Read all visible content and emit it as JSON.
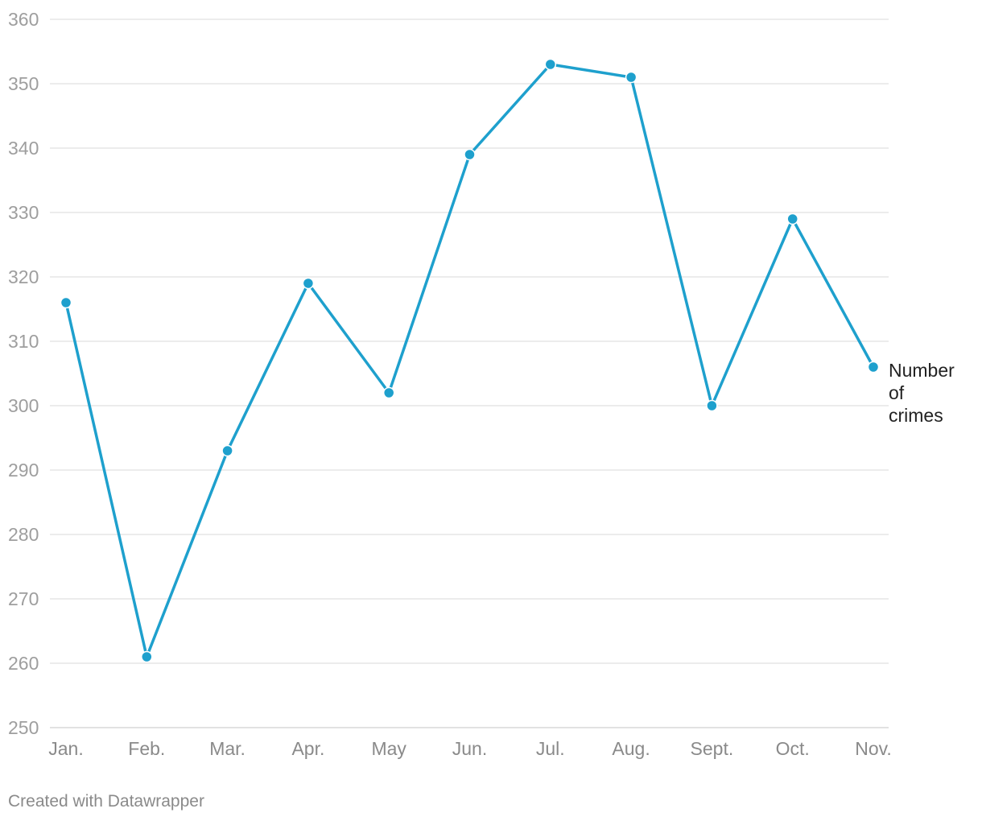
{
  "colors": {
    "line": "#1ea0cd",
    "grid": "#d9d9d9",
    "tick_text": "#9e9e9e",
    "label_text": "#222222"
  },
  "chart_data": {
    "type": "line",
    "title": "",
    "xlabel": "",
    "ylabel": "",
    "categories": [
      "Jan.",
      "Feb.",
      "Mar.",
      "Apr.",
      "May",
      "Jun.",
      "Jul.",
      "Aug.",
      "Sept.",
      "Oct.",
      "Nov."
    ],
    "series": [
      {
        "name": "Number of crimes",
        "name_lines": [
          "Number",
          "of",
          "crimes"
        ],
        "values": [
          316,
          261,
          293,
          319,
          302,
          339,
          353,
          351,
          300,
          329,
          306
        ]
      }
    ],
    "ylim": [
      250,
      360
    ],
    "yticks": [
      250,
      260,
      270,
      280,
      290,
      300,
      310,
      320,
      330,
      340,
      350,
      360
    ],
    "grid": true,
    "markers": true,
    "legend": "inline label at end of line"
  },
  "footer": {
    "credit": "Created with Datawrapper"
  }
}
